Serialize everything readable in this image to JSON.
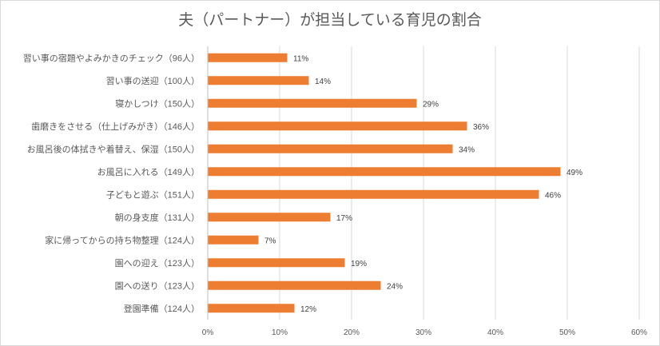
{
  "chart_data": {
    "type": "bar",
    "orientation": "horizontal",
    "title": "夫（パートナー）が担当している育児の割合",
    "xlabel": "",
    "ylabel": "",
    "xlim": [
      0,
      60
    ],
    "x_ticks": [
      "0%",
      "10%",
      "20%",
      "30%",
      "40%",
      "50%",
      "60%"
    ],
    "grid": true,
    "bar_color": "#ED7D31",
    "categories": [
      "習い事の宿題やよみかきのチェック（96人）",
      "習い事の送迎（100人）",
      "寝かしつけ（150人）",
      "歯磨きをさせる（仕上げみがき）（146人）",
      "お風呂後の体拭きや着替え、保湿（150人）",
      "お風呂に入れる（149人）",
      "子どもと遊ぶ（151人）",
      "朝の身支度（131人）",
      "家に帰ってからの持ち物整理（124人）",
      "園への迎え（123人）",
      "園への送り（123人）",
      "登園準備（124人）"
    ],
    "values": [
      11,
      14,
      29,
      36,
      34,
      49,
      46,
      17,
      7,
      19,
      24,
      12
    ],
    "data_labels": [
      "11%",
      "14%",
      "29%",
      "36%",
      "34%",
      "49%",
      "46%",
      "17%",
      "7%",
      "19%",
      "24%",
      "12%"
    ]
  }
}
